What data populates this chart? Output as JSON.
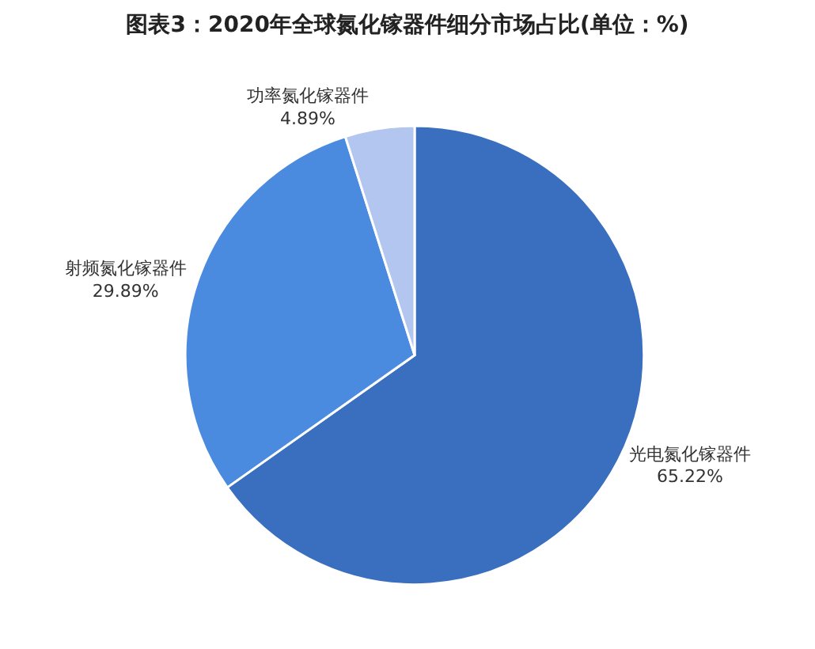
{
  "chart_data": {
    "type": "pie",
    "title": "图表3：2020年全球氮化镓器件细分市场占比(单位：%)",
    "categories": [
      "光电氮化镓器件",
      "射频氮化镓器件",
      "功率氮化镓器件"
    ],
    "values": [
      65.22,
      29.89,
      4.89
    ],
    "value_labels": [
      "65.22%",
      "29.89%",
      "4.89%"
    ],
    "colors": [
      "#3a6fbf",
      "#4a8be0",
      "#b3c6f0"
    ],
    "legend": false
  }
}
